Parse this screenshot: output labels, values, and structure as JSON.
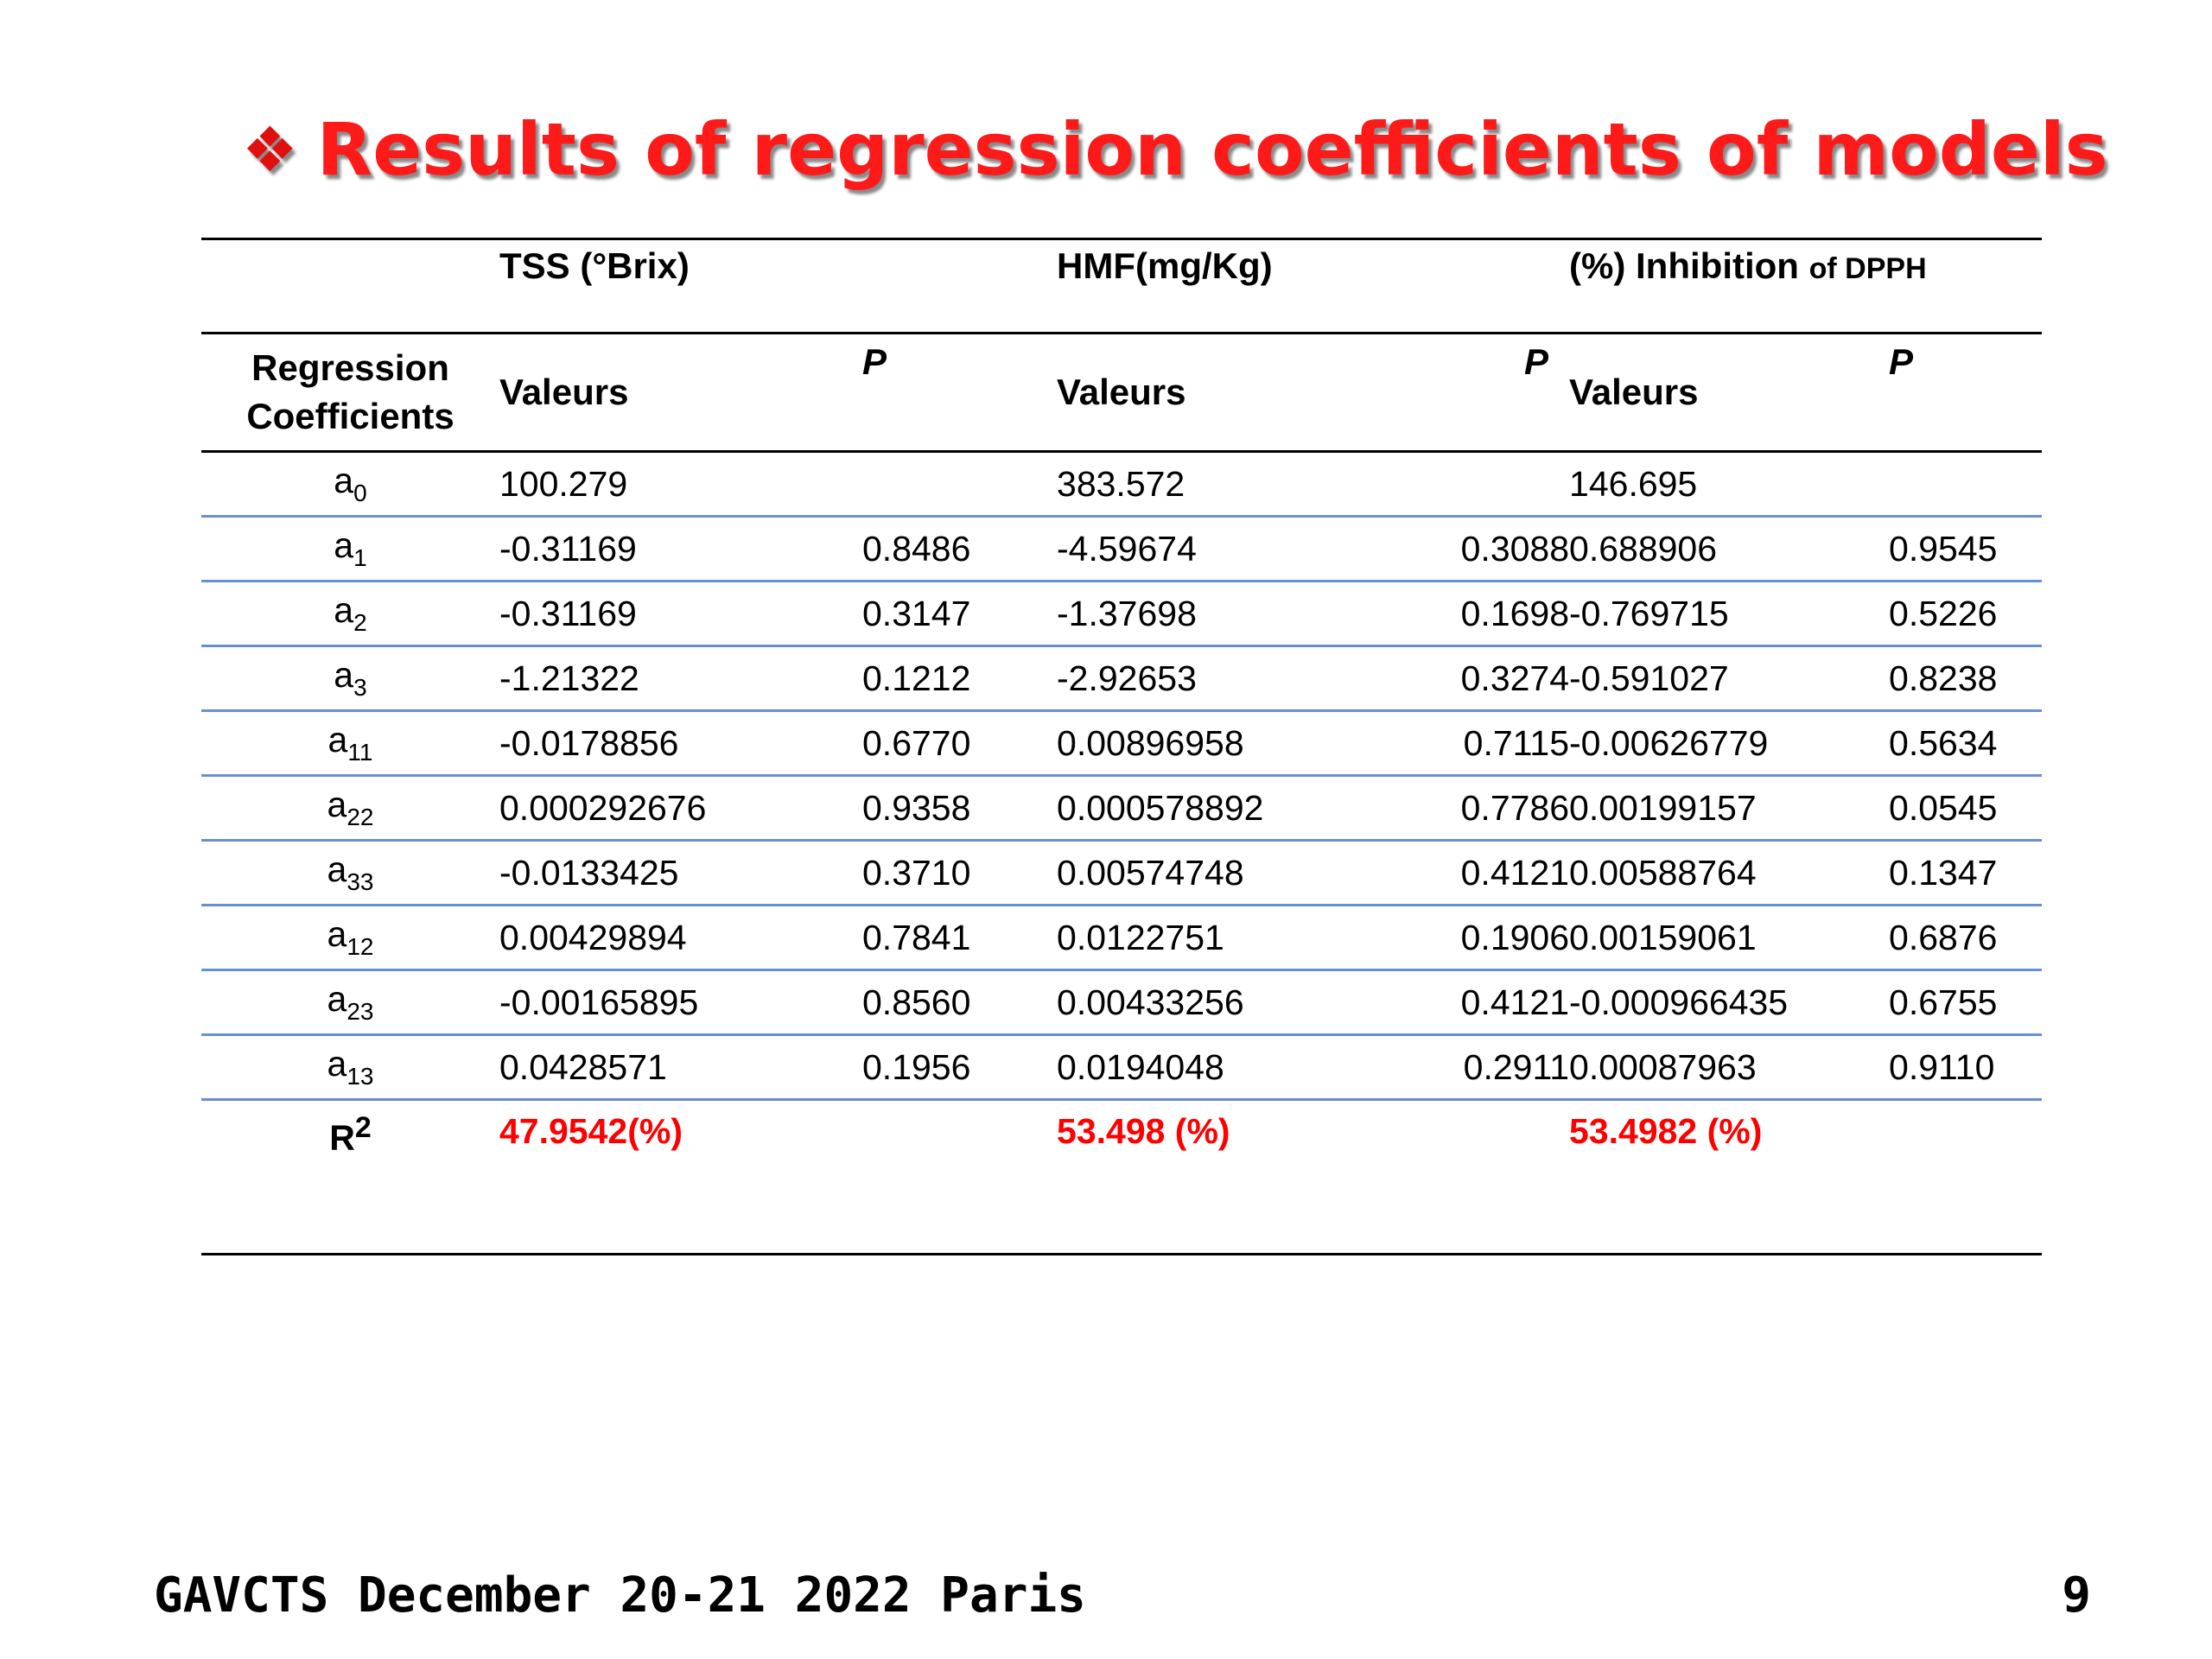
{
  "title": {
    "bullet": "❖",
    "text": "Results of regression coefficients of models"
  },
  "table": {
    "group_headers": {
      "tss": "TSS (°Brix)",
      "hmf": "HMF(mg/Kg)",
      "inhibition": "(%) Inhibition",
      "inhibition_suffix": "of DPPH"
    },
    "sub_headers": {
      "coef_line1": "Regression",
      "coef_line2": "Coefficients",
      "valeurs": "Valeurs",
      "p": "P"
    },
    "rows": [
      {
        "coef": "a",
        "sub": "0",
        "tss_val": "100.279",
        "tss_p": "",
        "hmf_val": "383.572",
        "hmf_p": "",
        "inh_val": "146.695",
        "inh_p": ""
      },
      {
        "coef": "a",
        "sub": "1",
        "tss_val": "-0.31169",
        "tss_p": "0.8486",
        "hmf_val": "-4.59674",
        "hmf_p": "0.3088",
        "inh_val": "0.688906",
        "inh_p": "0.9545"
      },
      {
        "coef": "a",
        "sub": "2",
        "tss_val": "-0.31169",
        "tss_p": "0.3147",
        "hmf_val": "-1.37698",
        "hmf_p": "0.1698",
        "inh_val": "-0.769715",
        "inh_p": "0.5226"
      },
      {
        "coef": "a",
        "sub": "3",
        "tss_val": "-1.21322",
        "tss_p": "0.1212",
        "hmf_val": "-2.92653",
        "hmf_p": "0.3274",
        "inh_val": "-0.591027",
        "inh_p": "0.8238"
      },
      {
        "coef": "a",
        "sub": "11",
        "tss_val": "-0.0178856",
        "tss_p": "0.6770",
        "hmf_val": "0.00896958",
        "hmf_p": "0.7115",
        "inh_val": "-0.00626779",
        "inh_p": "0.5634"
      },
      {
        "coef": "a",
        "sub": "22",
        "tss_val": "0.000292676",
        "tss_p": "0.9358",
        "hmf_val": "0.000578892",
        "hmf_p": "0.7786",
        "inh_val": "0.00199157",
        "inh_p": "0.0545"
      },
      {
        "coef": "a",
        "sub": "33",
        "tss_val": "-0.0133425",
        "tss_p": "0.3710",
        "hmf_val": "0.00574748",
        "hmf_p": "0.4121",
        "inh_val": "0.00588764",
        "inh_p": "0.1347"
      },
      {
        "coef": "a",
        "sub": "12",
        "tss_val": "0.00429894",
        "tss_p": "0.7841",
        "hmf_val": "0.0122751",
        "hmf_p": "0.1906",
        "inh_val": "0.00159061",
        "inh_p": "0.6876"
      },
      {
        "coef": "a",
        "sub": "23",
        "tss_val": "-0.00165895",
        "tss_p": "0.8560",
        "hmf_val": "0.00433256",
        "hmf_p": "0.4121",
        "inh_val": "-0.000966435",
        "inh_p": "0.6755"
      },
      {
        "coef": "a",
        "sub": "13",
        "tss_val": "0.0428571",
        "tss_p": "0.1956",
        "hmf_val": "0.0194048",
        "hmf_p": "0.2911",
        "inh_val": "0.00087963",
        "inh_p": "0.9110"
      }
    ],
    "r2": {
      "label": "R",
      "label_sup": "2",
      "tss": "47.9542(%)",
      "hmf": "53.498 (%)",
      "inhibition": "53.4982 (%)"
    }
  },
  "footer": {
    "text": "GAVCTS December 20-21 2022 Paris",
    "page_number": "9"
  },
  "colors": {
    "title": "#ff1a1a",
    "r2_values": "#ff0000",
    "row_divider": "#6a8fd0",
    "rule": "#000000"
  }
}
